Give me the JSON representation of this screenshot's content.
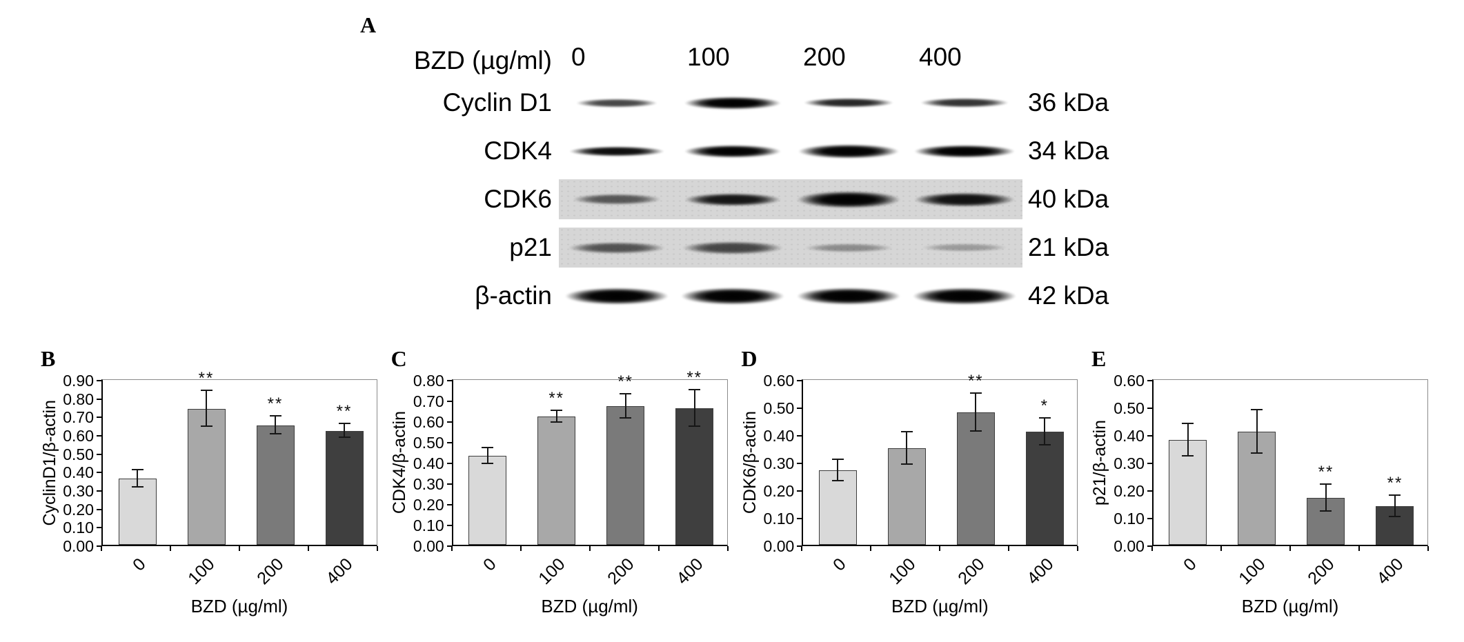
{
  "figure": {
    "panel_a": {
      "label": "A",
      "header_label": "BZD (µg/ml)",
      "concentrations": [
        "0",
        "100",
        "200",
        "400"
      ],
      "rows": [
        {
          "protein": "Cyclin D1",
          "mw": "36 kDa",
          "noisy": false,
          "bands": [
            [
              118,
              13,
              0.72
            ],
            [
              140,
              19,
              1
            ],
            [
              130,
              14,
              0.85
            ],
            [
              128,
              14,
              0.8
            ]
          ]
        },
        {
          "protein": "CDK4",
          "mw": "34 kDa",
          "noisy": false,
          "bands": [
            [
              138,
              15,
              0.95
            ],
            [
              140,
              19,
              1
            ],
            [
              146,
              21,
              1
            ],
            [
              146,
              19,
              1
            ]
          ]
        },
        {
          "protein": "CDK6",
          "mw": "40 kDa",
          "noisy": true,
          "bands": [
            [
              128,
              16,
              0.6
            ],
            [
              140,
              19,
              0.9
            ],
            [
              150,
              25,
              1
            ],
            [
              146,
              21,
              0.92
            ]
          ]
        },
        {
          "protein": "p21",
          "mw": "21 kDa",
          "noisy": true,
          "bands": [
            [
              140,
              17,
              0.62
            ],
            [
              146,
              19,
              0.68
            ],
            [
              128,
              13,
              0.35
            ],
            [
              124,
              12,
              0.28
            ]
          ]
        },
        {
          "protein": "β-actin",
          "mw": "42 kDa",
          "noisy": false,
          "bands": [
            [
              150,
              25,
              1
            ],
            [
              150,
              25,
              1
            ],
            [
              150,
              25,
              1
            ],
            [
              150,
              25,
              1
            ]
          ]
        }
      ]
    }
  },
  "chart_data": [
    {
      "type": "bar",
      "panel": "B",
      "ylabel": "CyclinD1/β-actin",
      "xlabel": "BZD (µg/ml)",
      "categories": [
        "0",
        "100",
        "200",
        "400"
      ],
      "values": [
        0.36,
        0.74,
        0.65,
        0.62
      ],
      "errors": [
        0.05,
        0.1,
        0.05,
        0.04
      ],
      "significance": [
        "",
        "**",
        "**",
        "**"
      ],
      "ylim": [
        0,
        0.9
      ],
      "ytick_step": 0.1,
      "grid": false,
      "legend": false,
      "bar_colors": [
        "#d9d9d9",
        "#a8a8a8",
        "#7a7a7a",
        "#3f3f3f"
      ]
    },
    {
      "type": "bar",
      "panel": "C",
      "ylabel": "CDK4/β-actin",
      "xlabel": "BZD (µg/ml)",
      "categories": [
        "0",
        "100",
        "200",
        "400"
      ],
      "values": [
        0.43,
        0.62,
        0.67,
        0.66
      ],
      "errors": [
        0.04,
        0.03,
        0.06,
        0.09
      ],
      "significance": [
        "",
        "**",
        "**",
        "**"
      ],
      "ylim": [
        0,
        0.8
      ],
      "ytick_step": 0.1,
      "grid": false,
      "legend": false,
      "bar_colors": [
        "#d9d9d9",
        "#a8a8a8",
        "#7a7a7a",
        "#3f3f3f"
      ]
    },
    {
      "type": "bar",
      "panel": "D",
      "ylabel": "CDK6/β-actin",
      "xlabel": "BZD (µg/ml)",
      "categories": [
        "0",
        "100",
        "200",
        "400"
      ],
      "values": [
        0.27,
        0.35,
        0.48,
        0.41
      ],
      "errors": [
        0.04,
        0.06,
        0.07,
        0.05
      ],
      "significance": [
        "",
        "",
        "**",
        "*"
      ],
      "ylim": [
        0,
        0.6
      ],
      "ytick_step": 0.1,
      "grid": false,
      "legend": false,
      "bar_colors": [
        "#d9d9d9",
        "#a8a8a8",
        "#7a7a7a",
        "#3f3f3f"
      ]
    },
    {
      "type": "bar",
      "panel": "E",
      "ylabel": "p21/β-actin",
      "xlabel": "BZD (µg/ml)",
      "categories": [
        "0",
        "100",
        "200",
        "400"
      ],
      "values": [
        0.38,
        0.41,
        0.17,
        0.14
      ],
      "errors": [
        0.06,
        0.08,
        0.05,
        0.04
      ],
      "significance": [
        "",
        "",
        "**",
        "**"
      ],
      "ylim": [
        0,
        0.6
      ],
      "ytick_step": 0.1,
      "grid": false,
      "legend": false,
      "bar_colors": [
        "#d9d9d9",
        "#a8a8a8",
        "#7a7a7a",
        "#3f3f3f"
      ]
    }
  ]
}
